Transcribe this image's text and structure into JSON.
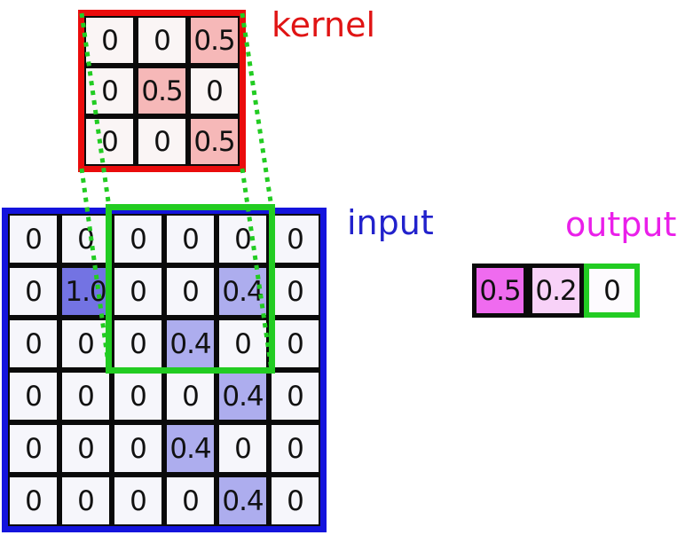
{
  "diagram": {
    "kernel": {
      "label": "kernel",
      "rows": [
        [
          "0",
          "0",
          "0.5"
        ],
        [
          "0",
          "0.5",
          "0"
        ],
        [
          "0",
          "0",
          "0.5"
        ]
      ]
    },
    "input": {
      "label": "input",
      "rows": [
        [
          "0",
          "0",
          "0",
          "0",
          "0",
          "0"
        ],
        [
          "0",
          "1.0",
          "0",
          "0",
          "0.4",
          "0"
        ],
        [
          "0",
          "0",
          "0",
          "0.4",
          "0",
          "0"
        ],
        [
          "0",
          "0",
          "0",
          "0",
          "0.4",
          "0"
        ],
        [
          "0",
          "0",
          "0",
          "0.4",
          "0",
          "0"
        ],
        [
          "0",
          "0",
          "0",
          "0",
          "0.4",
          "0"
        ]
      ]
    },
    "output": {
      "label": "output",
      "cells": [
        {
          "value": "0.5",
          "style": "strong"
        },
        {
          "value": "0.2",
          "style": "light"
        },
        {
          "value": "0",
          "style": "current"
        }
      ]
    },
    "colors": {
      "kernel_border": "#ea0c0c",
      "kernel_cell": "#faf5f5",
      "kernel_highlight": "#f6b8b8",
      "input_border": "#1414dd",
      "input_cell": "#f6f6fb",
      "input_highlight_strong": "#7373e3",
      "input_highlight_light": "#adadee",
      "focus_green": "#22cc22",
      "output_strong": "#ef6bef",
      "output_light": "#f8d2f8",
      "label_kernel": "#e01414",
      "label_input": "#2222cc",
      "label_output": "#ea1fea"
    }
  }
}
